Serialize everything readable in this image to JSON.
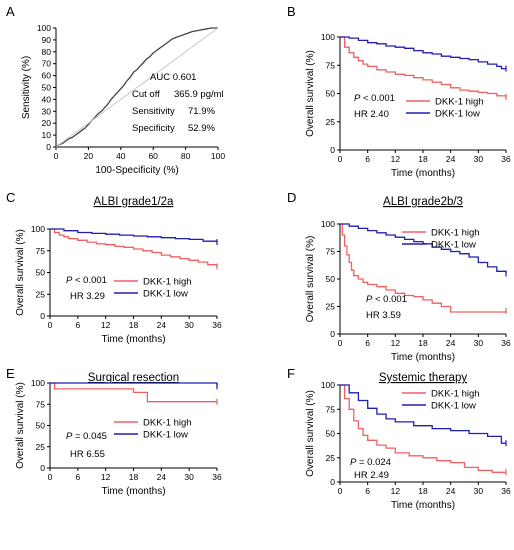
{
  "colors": {
    "high": "#f06060",
    "low": "#1f1fb4",
    "roc": "#444444",
    "diag": "#c8c8c8"
  },
  "chart_data": [
    {
      "panel": "A",
      "type": "line",
      "title": "",
      "xlabel": "100-Specificity (%)",
      "ylabel": "Sensitivity (%)",
      "xlim": [
        0,
        100
      ],
      "ylim": [
        0,
        100
      ],
      "xticks": [
        0,
        20,
        40,
        60,
        80,
        100
      ],
      "yticks": [
        0,
        10,
        20,
        30,
        40,
        50,
        60,
        70,
        80,
        90,
        100
      ],
      "annotations": [
        "AUC 0.601",
        "Cut off",
        "365.9 pg/ml",
        "Sensitivity",
        "71.9%",
        "Specificity",
        "52.9%"
      ],
      "series": [
        {
          "role": "roc",
          "x": [
            0,
            2,
            4,
            6,
            8,
            10,
            12,
            14,
            16,
            18,
            20,
            22,
            24,
            26,
            28,
            30,
            32,
            34,
            36,
            38,
            40,
            42,
            44,
            46,
            48,
            50,
            52,
            54,
            56,
            58,
            60,
            62,
            64,
            66,
            68,
            70,
            72,
            74,
            76,
            78,
            80,
            84,
            88,
            92,
            96,
            100
          ],
          "y": [
            0,
            2,
            3,
            5,
            7,
            8,
            10,
            12,
            14,
            16,
            19,
            22,
            25,
            28,
            30,
            33,
            36,
            40,
            43,
            46,
            49,
            52,
            56,
            59,
            63,
            65,
            68,
            71,
            74,
            76,
            79,
            81,
            83,
            85,
            87,
            89,
            91,
            92,
            93,
            94,
            95,
            97,
            98,
            99,
            100,
            100
          ]
        },
        {
          "role": "reference",
          "x": [
            0,
            100
          ],
          "y": [
            0,
            100
          ]
        }
      ]
    },
    {
      "panel": "B",
      "type": "line",
      "title": "",
      "xlabel": "Time (months)",
      "ylabel": "Overall survival (%)",
      "xlim": [
        0,
        36
      ],
      "ylim": [
        0,
        100
      ],
      "xticks": [
        0,
        6,
        12,
        18,
        24,
        30,
        36
      ],
      "yticks": [
        0,
        25,
        50,
        75,
        100
      ],
      "annotations": [
        "P < 0.001",
        "HR 2.40"
      ],
      "legend": "bottom-right",
      "series": [
        {
          "name": "DKK-1 high",
          "x": [
            0,
            1,
            2,
            3,
            4,
            5,
            6,
            8,
            10,
            12,
            14,
            16,
            18,
            20,
            22,
            24,
            26,
            28,
            30,
            32,
            34,
            36
          ],
          "y": [
            100,
            91,
            86,
            82,
            79,
            76,
            74,
            71,
            69,
            67,
            66,
            64,
            62,
            60,
            58,
            55,
            53,
            52,
            51,
            50,
            48,
            47
          ]
        },
        {
          "name": "DKK-1 low",
          "x": [
            0,
            2,
            4,
            6,
            8,
            10,
            12,
            14,
            16,
            18,
            20,
            22,
            24,
            26,
            28,
            30,
            32,
            34,
            35,
            36
          ],
          "y": [
            100,
            99,
            97,
            95,
            94,
            92,
            91,
            90,
            88,
            86,
            85,
            83,
            82,
            81,
            80,
            78,
            76,
            74,
            72,
            72
          ]
        }
      ]
    },
    {
      "panel": "C",
      "type": "line",
      "title": "ALBI grade1/2a",
      "xlabel": "Time (months)",
      "ylabel": "Overall survival (%)",
      "xlim": [
        0,
        36
      ],
      "ylim": [
        0,
        100
      ],
      "xticks": [
        0,
        6,
        12,
        18,
        24,
        30,
        36
      ],
      "yticks": [
        0,
        25,
        50,
        75,
        100
      ],
      "annotations": [
        "P < 0.001",
        "HR 3.29"
      ],
      "legend": "right",
      "series": [
        {
          "name": "DKK-1 high",
          "x": [
            0,
            1,
            2,
            3,
            4,
            6,
            8,
            10,
            12,
            14,
            16,
            18,
            20,
            22,
            24,
            26,
            28,
            30,
            32,
            34,
            36
          ],
          "y": [
            100,
            96,
            93,
            91,
            89,
            87,
            85,
            83,
            82,
            80,
            79,
            77,
            75,
            73,
            70,
            68,
            66,
            64,
            62,
            59,
            57
          ]
        },
        {
          "name": "DKK-1 low",
          "x": [
            0,
            3,
            6,
            9,
            12,
            15,
            18,
            21,
            24,
            27,
            30,
            33,
            36
          ],
          "y": [
            100,
            98,
            96,
            95,
            94,
            93,
            92,
            91,
            90,
            89,
            88,
            86,
            85
          ]
        }
      ]
    },
    {
      "panel": "D",
      "type": "line",
      "title": "ALBI grade2b/3",
      "xlabel": "Time (months)",
      "ylabel": "Overall survival (%)",
      "xlim": [
        0,
        36
      ],
      "ylim": [
        0,
        100
      ],
      "xticks": [
        0,
        6,
        12,
        18,
        24,
        30,
        36
      ],
      "yticks": [
        0,
        25,
        50,
        75,
        100
      ],
      "annotations": [
        "P < 0.001",
        "HR 3.59"
      ],
      "legend": "top-right",
      "series": [
        {
          "name": "DKK-1 high",
          "x": [
            0,
            0.5,
            1,
            1.5,
            2,
            2.5,
            3,
            4,
            5,
            6,
            8,
            10,
            12,
            14,
            16,
            18,
            20,
            22,
            24,
            26,
            28,
            30,
            32,
            34,
            36
          ],
          "y": [
            100,
            90,
            80,
            72,
            65,
            58,
            53,
            50,
            47,
            45,
            43,
            40,
            37,
            35,
            34,
            31,
            28,
            25,
            20,
            20,
            20,
            20,
            20,
            20,
            21
          ]
        },
        {
          "name": "DKK-1 low",
          "x": [
            0,
            2,
            4,
            6,
            8,
            10,
            12,
            14,
            16,
            18,
            20,
            22,
            24,
            26,
            28,
            30,
            32,
            34,
            36
          ],
          "y": [
            100,
            98,
            96,
            94,
            92,
            90,
            88,
            86,
            84,
            82,
            79,
            77,
            75,
            73,
            70,
            65,
            61,
            57,
            55
          ]
        }
      ]
    },
    {
      "panel": "E",
      "type": "line",
      "title": "Surgical resection",
      "xlabel": "Time (months)",
      "ylabel": "Overall survival (%)",
      "xlim": [
        0,
        36
      ],
      "ylim": [
        0,
        100
      ],
      "xticks": [
        0,
        6,
        12,
        18,
        24,
        30,
        36
      ],
      "yticks": [
        0,
        25,
        50,
        75,
        100
      ],
      "annotations": [
        "P = 0.045",
        "HR 6.55"
      ],
      "legend": "right",
      "series": [
        {
          "name": "DKK-1 high",
          "x": [
            0,
            1,
            13,
            18,
            21,
            30,
            36
          ],
          "y": [
            100,
            93,
            93,
            89,
            78,
            78,
            78
          ]
        },
        {
          "name": "DKK-1 low",
          "x": [
            0,
            35,
            36
          ],
          "y": [
            100,
            100,
            96
          ]
        }
      ]
    },
    {
      "panel": "F",
      "type": "line",
      "title": "Systemic therapy",
      "xlabel": "Time (months)",
      "ylabel": "Overall survival (%)",
      "xlim": [
        0,
        36
      ],
      "ylim": [
        0,
        100
      ],
      "xticks": [
        0,
        6,
        12,
        18,
        24,
        30,
        36
      ],
      "yticks": [
        0,
        25,
        50,
        75,
        100
      ],
      "annotations": [
        "P = 0.024",
        "HR 2.49"
      ],
      "legend": "top-right",
      "series": [
        {
          "name": "DKK-1 high",
          "x": [
            0,
            1,
            2,
            3,
            4,
            5,
            6,
            8,
            10,
            12,
            15,
            18,
            21,
            24,
            27,
            30,
            33,
            36
          ],
          "y": [
            100,
            86,
            75,
            63,
            55,
            48,
            43,
            38,
            35,
            30,
            27,
            25,
            22,
            20,
            15,
            12,
            10,
            10
          ]
        },
        {
          "name": "DKK-1 low",
          "x": [
            0,
            2,
            4,
            6,
            8,
            10,
            12,
            16,
            20,
            24,
            28,
            32,
            35,
            36
          ],
          "y": [
            100,
            92,
            84,
            76,
            70,
            65,
            62,
            58,
            55,
            53,
            50,
            47,
            40,
            40
          ]
        }
      ]
    }
  ]
}
